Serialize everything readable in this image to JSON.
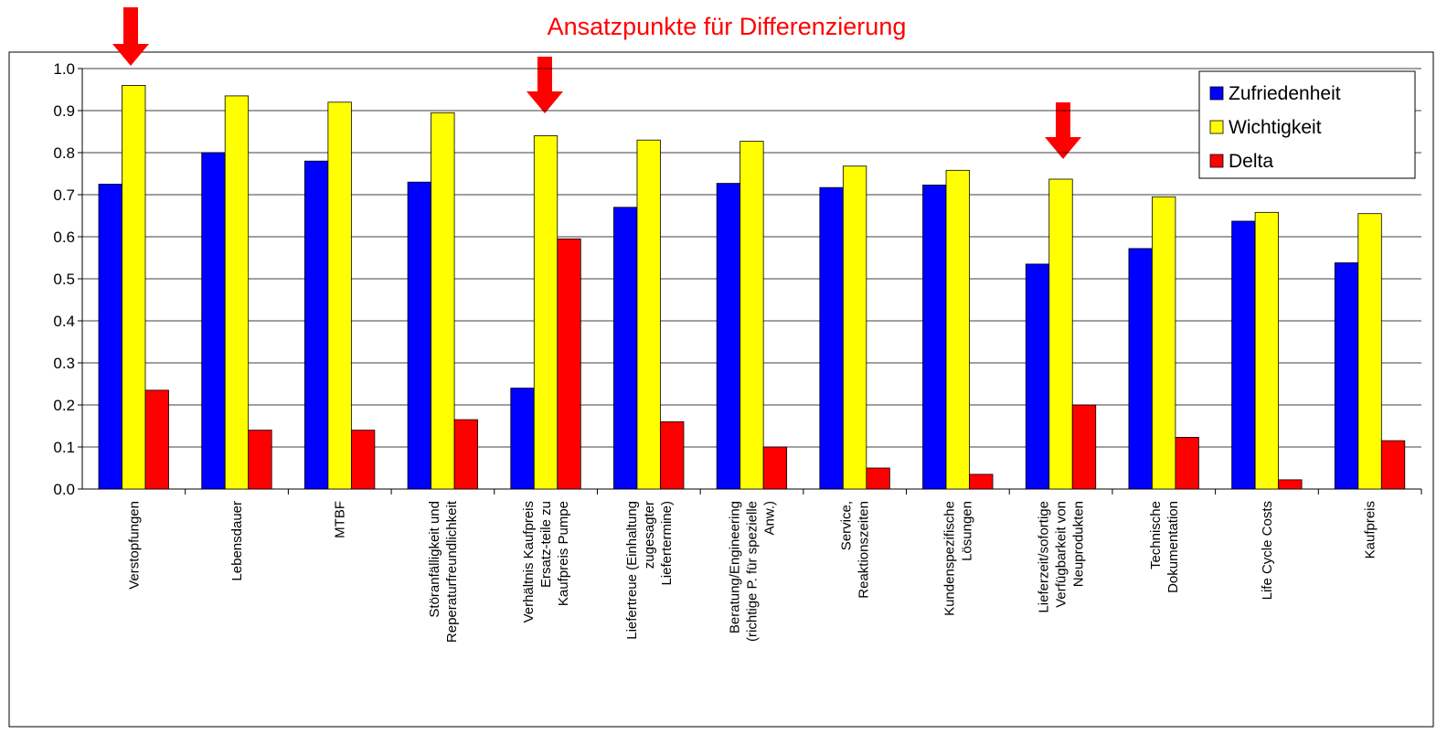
{
  "chart_data": {
    "type": "bar",
    "title": "Ansatzpunkte für Differenzierung",
    "categories": [
      "Verstopfungen",
      "Lebensdauer",
      "MTBF",
      "Störanfälligkeit und\nReperaturfreundlichkeit",
      "Verhältnis Kaufpreis\nErsatz-teile zu\nKaufpreis Pumpe",
      "Liefertreue (Einhaltung\nzugesagter\nLiefertermine)",
      "Beratung/Engineering\n(richtige P. für spezielle\nAnw.)",
      "Service,\nReaktionszeiten",
      "Kundenspezifische\nLösungen",
      "Lieferzeit/sofortige\nVerfügbarkeit von\nNeuprodukten",
      "Technische\nDokumentation",
      "Life Cycle Costs",
      "Kaufpreis"
    ],
    "series": [
      {
        "name": "Zufriedenheit",
        "color": "#0000ff",
        "values": [
          0.725,
          0.8,
          0.78,
          0.73,
          0.24,
          0.67,
          0.727,
          0.717,
          0.723,
          0.535,
          0.572,
          0.637,
          0.538
        ]
      },
      {
        "name": "Wichtigkeit",
        "color": "#ffff00",
        "values": [
          0.96,
          0.935,
          0.92,
          0.895,
          0.84,
          0.83,
          0.827,
          0.768,
          0.758,
          0.737,
          0.695,
          0.658,
          0.655
        ]
      },
      {
        "name": "Delta",
        "color": "#ff0000",
        "values": [
          0.235,
          0.14,
          0.14,
          0.165,
          0.595,
          0.16,
          0.1,
          0.05,
          0.035,
          0.2,
          0.123,
          0.022,
          0.115
        ]
      }
    ],
    "ylim": [
      0,
      1
    ],
    "yticks": [
      {
        "value": 0,
        "label": "0.0"
      },
      0.1,
      0.2,
      0.3,
      0.4,
      0.5,
      0.6,
      0.7,
      0.8,
      0.9,
      {
        "value": 1,
        "label": "1.0"
      }
    ],
    "grid": true,
    "legend": "upper right"
  }
}
